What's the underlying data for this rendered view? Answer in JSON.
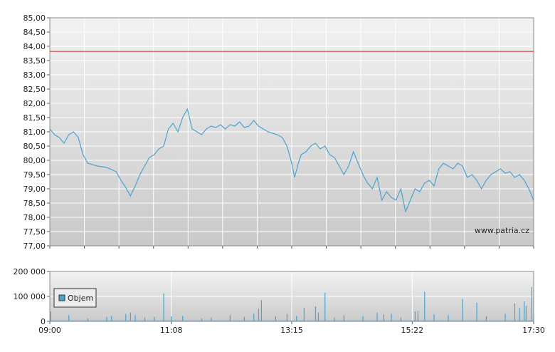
{
  "chart_data": [
    {
      "type": "line",
      "title": "",
      "xlabel": "",
      "ylabel": "",
      "ylim": [
        77.0,
        85.0
      ],
      "y_ticks": [
        "77,00",
        "77,50",
        "78,00",
        "78,50",
        "79,00",
        "79,50",
        "80,00",
        "80,50",
        "81,00",
        "81,50",
        "82,00",
        "82,50",
        "83,00",
        "83,50",
        "84,00",
        "84,50",
        "85,00"
      ],
      "grid": true,
      "reference_line": {
        "value": 83.82,
        "color": "#d04040"
      },
      "watermark": "www.patria.cz",
      "series": [
        {
          "color": "#4aa3d0",
          "points": [
            [
              "09:00",
              81.1
            ],
            [
              "09:05",
              80.9
            ],
            [
              "09:10",
              80.8
            ],
            [
              "09:15",
              80.6
            ],
            [
              "09:20",
              80.9
            ],
            [
              "09:25",
              81.0
            ],
            [
              "09:30",
              80.8
            ],
            [
              "09:35",
              80.2
            ],
            [
              "09:40",
              79.9
            ],
            [
              "09:50",
              79.8
            ],
            [
              "10:00",
              79.75
            ],
            [
              "10:10",
              79.6
            ],
            [
              "10:15",
              79.3
            ],
            [
              "10:20",
              79.05
            ],
            [
              "10:25",
              78.75
            ],
            [
              "10:30",
              79.1
            ],
            [
              "10:35",
              79.5
            ],
            [
              "10:40",
              79.8
            ],
            [
              "10:45",
              80.1
            ],
            [
              "10:50",
              80.2
            ],
            [
              "10:55",
              80.4
            ],
            [
              "11:00",
              80.5
            ],
            [
              "11:05",
              81.1
            ],
            [
              "11:10",
              81.3
            ],
            [
              "11:15",
              81.0
            ],
            [
              "11:20",
              81.5
            ],
            [
              "11:25",
              81.8
            ],
            [
              "11:30",
              81.1
            ],
            [
              "11:35",
              81.0
            ],
            [
              "11:40",
              80.9
            ],
            [
              "11:45",
              81.1
            ],
            [
              "11:50",
              81.2
            ],
            [
              "11:55",
              81.15
            ],
            [
              "12:00",
              81.25
            ],
            [
              "12:05",
              81.1
            ],
            [
              "12:10",
              81.25
            ],
            [
              "12:15",
              81.2
            ],
            [
              "12:20",
              81.35
            ],
            [
              "12:25",
              81.15
            ],
            [
              "12:30",
              81.2
            ],
            [
              "12:35",
              81.4
            ],
            [
              "12:40",
              81.2
            ],
            [
              "12:45",
              81.1
            ],
            [
              "12:50",
              81.0
            ],
            [
              "12:55",
              80.95
            ],
            [
              "13:00",
              80.9
            ],
            [
              "13:05",
              80.8
            ],
            [
              "13:10",
              80.5
            ],
            [
              "13:15",
              79.9
            ],
            [
              "13:18",
              79.4
            ],
            [
              "13:22",
              79.9
            ],
            [
              "13:25",
              80.2
            ],
            [
              "13:30",
              80.3
            ],
            [
              "13:35",
              80.5
            ],
            [
              "13:40",
              80.6
            ],
            [
              "13:45",
              80.4
            ],
            [
              "13:50",
              80.5
            ],
            [
              "13:55",
              80.2
            ],
            [
              "14:00",
              80.1
            ],
            [
              "14:05",
              79.8
            ],
            [
              "14:10",
              79.5
            ],
            [
              "14:15",
              79.8
            ],
            [
              "14:20",
              80.3
            ],
            [
              "14:25",
              79.9
            ],
            [
              "14:30",
              79.5
            ],
            [
              "14:35",
              79.2
            ],
            [
              "14:40",
              79.0
            ],
            [
              "14:45",
              79.4
            ],
            [
              "14:50",
              78.6
            ],
            [
              "14:55",
              78.9
            ],
            [
              "15:00",
              78.7
            ],
            [
              "15:05",
              78.6
            ],
            [
              "15:10",
              79.0
            ],
            [
              "15:15",
              78.2
            ],
            [
              "15:20",
              78.6
            ],
            [
              "15:25",
              79.0
            ],
            [
              "15:30",
              78.9
            ],
            [
              "15:35",
              79.2
            ],
            [
              "15:40",
              79.3
            ],
            [
              "15:45",
              79.1
            ],
            [
              "15:50",
              79.7
            ],
            [
              "15:55",
              79.9
            ],
            [
              "16:00",
              79.8
            ],
            [
              "16:05",
              79.7
            ],
            [
              "16:10",
              79.9
            ],
            [
              "16:15",
              79.8
            ],
            [
              "16:20",
              79.4
            ],
            [
              "16:25",
              79.5
            ],
            [
              "16:30",
              79.3
            ],
            [
              "16:35",
              79.0
            ],
            [
              "16:40",
              79.3
            ],
            [
              "16:45",
              79.5
            ],
            [
              "16:50",
              79.6
            ],
            [
              "16:55",
              79.7
            ],
            [
              "17:00",
              79.55
            ],
            [
              "17:05",
              79.6
            ],
            [
              "17:10",
              79.4
            ],
            [
              "17:15",
              79.5
            ],
            [
              "17:20",
              79.3
            ],
            [
              "17:25",
              79.0
            ],
            [
              "17:30",
              78.6
            ]
          ]
        }
      ]
    },
    {
      "type": "bar",
      "title": "",
      "xlabel": "",
      "ylabel": "",
      "ylim": [
        0,
        200000
      ],
      "y_ticks": [
        "0",
        "100 000",
        "200 000"
      ],
      "x_ticks": [
        "09:00",
        "11:08",
        "13:15",
        "15:22",
        "17:30"
      ],
      "grid": true,
      "legend": {
        "label": "Objem",
        "placement": "bottom-left"
      },
      "series": [
        {
          "name": "Objem",
          "color": "#4aa3d0",
          "points": [
            [
              "09:00",
              15000
            ],
            [
              "09:01",
              40000
            ],
            [
              "09:20",
              25000
            ],
            [
              "09:40",
              12000
            ],
            [
              "10:00",
              18000
            ],
            [
              "10:05",
              22000
            ],
            [
              "10:20",
              30000
            ],
            [
              "10:25",
              35000
            ],
            [
              "10:30",
              25000
            ],
            [
              "10:40",
              15000
            ],
            [
              "10:50",
              18000
            ],
            [
              "11:00",
              112000
            ],
            [
              "11:08",
              20000
            ],
            [
              "11:20",
              22000
            ],
            [
              "11:40",
              12000
            ],
            [
              "11:50",
              15000
            ],
            [
              "12:10",
              25000
            ],
            [
              "12:25",
              18000
            ],
            [
              "12:35",
              30000
            ],
            [
              "12:40",
              50000
            ],
            [
              "12:43",
              85000
            ],
            [
              "12:58",
              20000
            ],
            [
              "13:10",
              30000
            ],
            [
              "13:20",
              22000
            ],
            [
              "13:28",
              55000
            ],
            [
              "13:40",
              60000
            ],
            [
              "13:43",
              35000
            ],
            [
              "13:50",
              115000
            ],
            [
              "14:00",
              15000
            ],
            [
              "14:10",
              25000
            ],
            [
              "14:30",
              20000
            ],
            [
              "14:45",
              35000
            ],
            [
              "14:52",
              28000
            ],
            [
              "15:00",
              30000
            ],
            [
              "15:10",
              15000
            ],
            [
              "15:25",
              40000
            ],
            [
              "15:28",
              42000
            ],
            [
              "15:35",
              118000
            ],
            [
              "15:45",
              28000
            ],
            [
              "16:00",
              25000
            ],
            [
              "16:15",
              90000
            ],
            [
              "16:30",
              75000
            ],
            [
              "16:40",
              20000
            ],
            [
              "17:00",
              30000
            ],
            [
              "17:10",
              72000
            ],
            [
              "17:15",
              55000
            ],
            [
              "17:20",
              80000
            ],
            [
              "17:22",
              62000
            ],
            [
              "17:28",
              138000
            ],
            [
              "17:30",
              30000
            ]
          ]
        }
      ]
    }
  ]
}
